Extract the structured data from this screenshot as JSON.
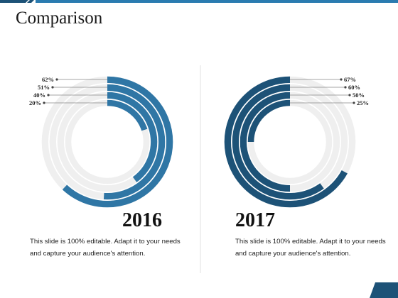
{
  "slide": {
    "title": "Comparison",
    "colors": {
      "accent_2016": "#2f76a5",
      "accent_2017": "#1d5277",
      "track": "#efefef",
      "top_bar": "#2a7bb0"
    }
  },
  "chart_data": [
    {
      "type": "radial-bar",
      "title": "2016",
      "series": [
        {
          "name": "",
          "value": 62,
          "label": "62%"
        },
        {
          "name": "",
          "value": 51,
          "label": "51%"
        },
        {
          "name": "",
          "value": 40,
          "label": "40%"
        },
        {
          "name": "",
          "value": 20,
          "label": "20%"
        }
      ],
      "unit": "%",
      "color": "#2f76a5",
      "label_side": "left"
    },
    {
      "type": "radial-bar",
      "title": "2017",
      "series": [
        {
          "name": "",
          "value": 67,
          "label": "67%"
        },
        {
          "name": "",
          "value": 60,
          "label": "60%"
        },
        {
          "name": "",
          "value": 50,
          "label": "50%"
        },
        {
          "name": "",
          "value": 25,
          "label": "25%"
        }
      ],
      "unit": "%",
      "color": "#1d5277",
      "label_side": "right"
    }
  ],
  "panels": [
    {
      "year": "2016",
      "description": "This slide is 100% editable. Adapt it to your needs and capture your audience's attention."
    },
    {
      "year": "2017",
      "description": "This slide is 100% editable. Adapt it to your needs and capture your audience's attention."
    }
  ]
}
